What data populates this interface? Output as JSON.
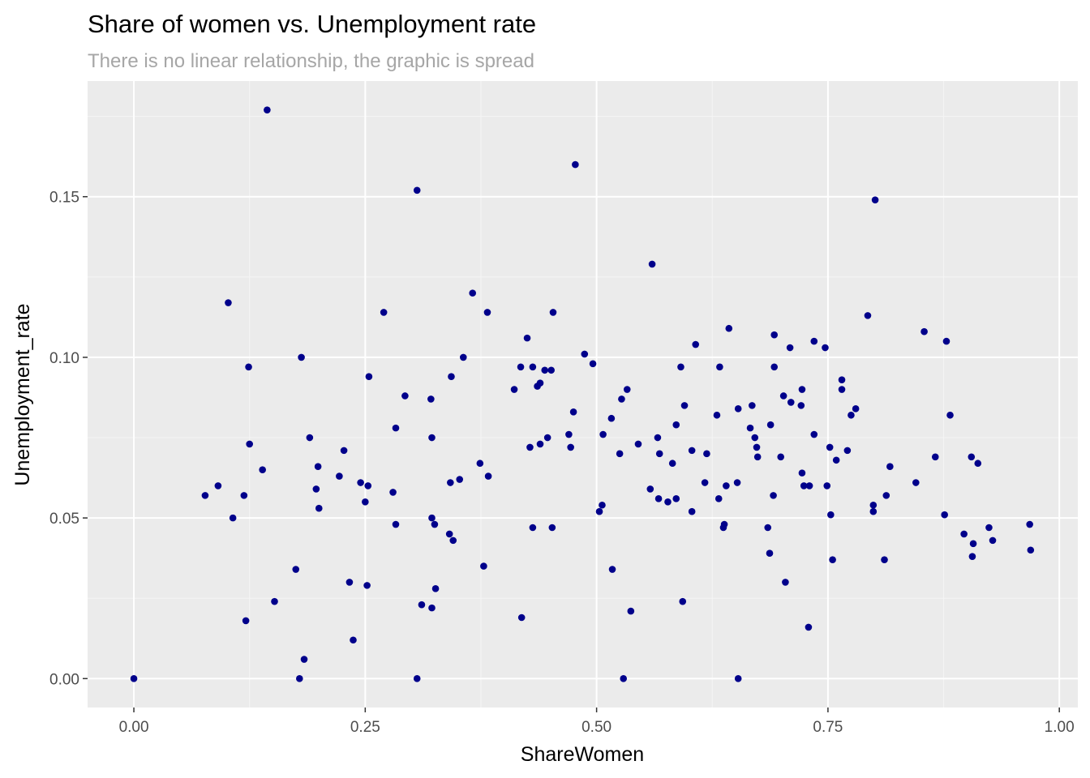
{
  "chart_data": {
    "type": "scatter",
    "title": "Share of women vs. Unemployment rate",
    "subtitle": "There is no linear relationship, the graphic is spread",
    "xlabel": "ShareWomen",
    "ylabel": "Unemployment_rate",
    "xlim": [
      -0.05,
      1.02
    ],
    "ylim": [
      -0.009,
      0.186
    ],
    "x_ticks": [
      0.0,
      0.25,
      0.5,
      0.75,
      1.0
    ],
    "x_tick_labels": [
      "0.00",
      "0.25",
      "0.50",
      "0.75",
      "1.00"
    ],
    "y_ticks": [
      0.0,
      0.05,
      0.1,
      0.15
    ],
    "y_tick_labels": [
      "0.00",
      "0.05",
      "0.10",
      "0.15"
    ],
    "grid": true,
    "legend": "none",
    "colors": {
      "point": "#00008b",
      "panel": "#ebebeb",
      "grid_major": "#ffffff",
      "grid_minor": "#f5f5f5"
    },
    "points": [
      [
        0.0,
        0.0
      ],
      [
        0.077,
        0.057
      ],
      [
        0.091,
        0.06
      ],
      [
        0.102,
        0.117
      ],
      [
        0.107,
        0.05
      ],
      [
        0.119,
        0.057
      ],
      [
        0.121,
        0.018
      ],
      [
        0.124,
        0.097
      ],
      [
        0.125,
        0.073
      ],
      [
        0.139,
        0.065
      ],
      [
        0.144,
        0.177
      ],
      [
        0.152,
        0.024
      ],
      [
        0.175,
        0.034
      ],
      [
        0.179,
        0.0
      ],
      [
        0.181,
        0.1
      ],
      [
        0.184,
        0.006
      ],
      [
        0.19,
        0.075
      ],
      [
        0.197,
        0.059
      ],
      [
        0.199,
        0.066
      ],
      [
        0.2,
        0.053
      ],
      [
        0.222,
        0.063
      ],
      [
        0.227,
        0.071
      ],
      [
        0.233,
        0.03
      ],
      [
        0.237,
        0.012
      ],
      [
        0.245,
        0.061
      ],
      [
        0.25,
        0.055
      ],
      [
        0.252,
        0.029
      ],
      [
        0.253,
        0.06
      ],
      [
        0.254,
        0.094
      ],
      [
        0.27,
        0.114
      ],
      [
        0.28,
        0.058
      ],
      [
        0.283,
        0.078
      ],
      [
        0.283,
        0.048
      ],
      [
        0.293,
        0.088
      ],
      [
        0.306,
        0.152
      ],
      [
        0.306,
        0.0
      ],
      [
        0.311,
        0.023
      ],
      [
        0.321,
        0.087
      ],
      [
        0.322,
        0.075
      ],
      [
        0.322,
        0.05
      ],
      [
        0.322,
        0.022
      ],
      [
        0.325,
        0.048
      ],
      [
        0.326,
        0.028
      ],
      [
        0.341,
        0.045
      ],
      [
        0.342,
        0.061
      ],
      [
        0.343,
        0.094
      ],
      [
        0.345,
        0.043
      ],
      [
        0.352,
        0.062
      ],
      [
        0.356,
        0.1
      ],
      [
        0.366,
        0.12
      ],
      [
        0.374,
        0.067
      ],
      [
        0.378,
        0.035
      ],
      [
        0.382,
        0.114
      ],
      [
        0.383,
        0.063
      ],
      [
        0.411,
        0.09
      ],
      [
        0.418,
        0.097
      ],
      [
        0.419,
        0.019
      ],
      [
        0.425,
        0.106
      ],
      [
        0.428,
        0.072
      ],
      [
        0.431,
        0.047
      ],
      [
        0.431,
        0.097
      ],
      [
        0.436,
        0.091
      ],
      [
        0.439,
        0.092
      ],
      [
        0.439,
        0.073
      ],
      [
        0.444,
        0.096
      ],
      [
        0.447,
        0.075
      ],
      [
        0.451,
        0.096
      ],
      [
        0.452,
        0.047
      ],
      [
        0.453,
        0.114
      ],
      [
        0.47,
        0.076
      ],
      [
        0.472,
        0.072
      ],
      [
        0.475,
        0.083
      ],
      [
        0.477,
        0.16
      ],
      [
        0.487,
        0.101
      ],
      [
        0.496,
        0.098
      ],
      [
        0.503,
        0.052
      ],
      [
        0.506,
        0.054
      ],
      [
        0.507,
        0.076
      ],
      [
        0.516,
        0.081
      ],
      [
        0.517,
        0.034
      ],
      [
        0.525,
        0.07
      ],
      [
        0.527,
        0.087
      ],
      [
        0.529,
        0.0
      ],
      [
        0.533,
        0.09
      ],
      [
        0.537,
        0.021
      ],
      [
        0.545,
        0.073
      ],
      [
        0.558,
        0.059
      ],
      [
        0.56,
        0.129
      ],
      [
        0.566,
        0.075
      ],
      [
        0.567,
        0.056
      ],
      [
        0.568,
        0.07
      ],
      [
        0.577,
        0.055
      ],
      [
        0.582,
        0.067
      ],
      [
        0.586,
        0.079
      ],
      [
        0.586,
        0.056
      ],
      [
        0.591,
        0.097
      ],
      [
        0.593,
        0.024
      ],
      [
        0.595,
        0.085
      ],
      [
        0.603,
        0.071
      ],
      [
        0.603,
        0.052
      ],
      [
        0.607,
        0.104
      ],
      [
        0.617,
        0.061
      ],
      [
        0.619,
        0.07
      ],
      [
        0.63,
        0.082
      ],
      [
        0.632,
        0.056
      ],
      [
        0.633,
        0.097
      ],
      [
        0.637,
        0.047
      ],
      [
        0.638,
        0.048
      ],
      [
        0.64,
        0.06
      ],
      [
        0.643,
        0.109
      ],
      [
        0.652,
        0.061
      ],
      [
        0.653,
        0.0
      ],
      [
        0.653,
        0.084
      ],
      [
        0.666,
        0.078
      ],
      [
        0.668,
        0.085
      ],
      [
        0.671,
        0.075
      ],
      [
        0.673,
        0.072
      ],
      [
        0.674,
        0.069
      ],
      [
        0.685,
        0.047
      ],
      [
        0.687,
        0.039
      ],
      [
        0.688,
        0.079
      ],
      [
        0.691,
        0.057
      ],
      [
        0.692,
        0.097
      ],
      [
        0.692,
        0.107
      ],
      [
        0.699,
        0.069
      ],
      [
        0.702,
        0.088
      ],
      [
        0.704,
        0.03
      ],
      [
        0.709,
        0.103
      ],
      [
        0.71,
        0.086
      ],
      [
        0.721,
        0.085
      ],
      [
        0.722,
        0.09
      ],
      [
        0.722,
        0.064
      ],
      [
        0.724,
        0.06
      ],
      [
        0.729,
        0.016
      ],
      [
        0.73,
        0.06
      ],
      [
        0.735,
        0.105
      ],
      [
        0.735,
        0.076
      ],
      [
        0.747,
        0.103
      ],
      [
        0.749,
        0.06
      ],
      [
        0.752,
        0.072
      ],
      [
        0.753,
        0.051
      ],
      [
        0.755,
        0.037
      ],
      [
        0.759,
        0.068
      ],
      [
        0.765,
        0.093
      ],
      [
        0.765,
        0.09
      ],
      [
        0.771,
        0.071
      ],
      [
        0.775,
        0.082
      ],
      [
        0.78,
        0.084
      ],
      [
        0.793,
        0.113
      ],
      [
        0.799,
        0.054
      ],
      [
        0.799,
        0.052
      ],
      [
        0.801,
        0.149
      ],
      [
        0.811,
        0.037
      ],
      [
        0.813,
        0.057
      ],
      [
        0.817,
        0.066
      ],
      [
        0.845,
        0.061
      ],
      [
        0.854,
        0.108
      ],
      [
        0.866,
        0.069
      ],
      [
        0.876,
        0.051
      ],
      [
        0.878,
        0.105
      ],
      [
        0.882,
        0.082
      ],
      [
        0.897,
        0.045
      ],
      [
        0.905,
        0.069
      ],
      [
        0.906,
        0.038
      ],
      [
        0.907,
        0.042
      ],
      [
        0.912,
        0.067
      ],
      [
        0.924,
        0.047
      ],
      [
        0.928,
        0.043
      ],
      [
        0.968,
        0.048
      ],
      [
        0.969,
        0.04
      ]
    ]
  }
}
